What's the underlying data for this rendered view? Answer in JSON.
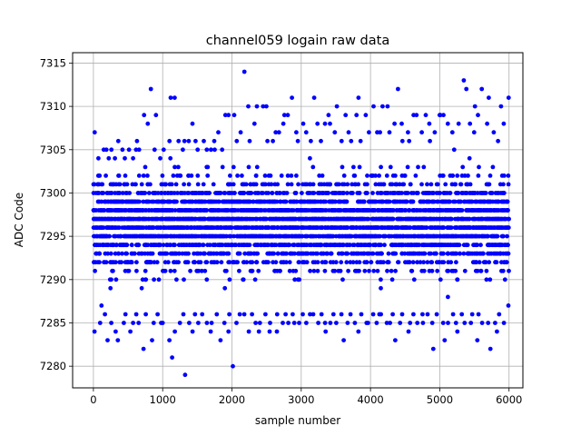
{
  "chart_data": {
    "type": "scatter",
    "title": "channel059 logain raw data",
    "xlabel": "sample number",
    "ylabel": "ADC Code",
    "xlim": [
      -300,
      6200
    ],
    "ylim": [
      7277.5,
      7316.2
    ],
    "grid": true,
    "legend": "none",
    "marker_color": "#0000ff",
    "x_ticks": [
      {
        "value": 0,
        "label": "0"
      },
      {
        "value": 1000,
        "label": "1000"
      },
      {
        "value": 2000,
        "label": "2000"
      },
      {
        "value": 3000,
        "label": "3000"
      },
      {
        "value": 4000,
        "label": "4000"
      },
      {
        "value": 5000,
        "label": "5000"
      },
      {
        "value": 6000,
        "label": "6000"
      }
    ],
    "y_ticks": [
      {
        "value": 7280,
        "label": "7280"
      },
      {
        "value": 7285,
        "label": "7285"
      },
      {
        "value": 7290,
        "label": "7290"
      },
      {
        "value": 7295,
        "label": "7295"
      },
      {
        "value": 7300,
        "label": "7300"
      },
      {
        "value": 7305,
        "label": "7305"
      },
      {
        "value": 7310,
        "label": "7310"
      },
      {
        "value": 7315,
        "label": "7315"
      }
    ],
    "series": [
      {
        "x_start": 0,
        "x_end": 5950,
        "x_step": 50,
        "y_min_per_bin": [
          7284,
          7285,
          7287,
          7286,
          7283,
          7285,
          7284,
          7283,
          7285,
          7286,
          7284,
          7285,
          7286,
          7285,
          7282,
          7286,
          7283,
          7285,
          7286,
          7285,
          7285,
          7283,
          7281,
          7284,
          7285,
          7286,
          7279,
          7285,
          7284,
          7286,
          7285,
          7286,
          7285,
          7284,
          7285,
          7286,
          7283,
          7285,
          7284,
          7286,
          7280,
          7285,
          7286,
          7286,
          7284,
          7286,
          7285,
          7284,
          7285,
          7286,
          7284,
          7285,
          7284,
          7286,
          7285,
          7286,
          7285,
          7286,
          7285,
          7285,
          7286,
          7285,
          7286,
          7286,
          7285,
          7286,
          7285,
          7284,
          7285,
          7286,
          7285,
          7286,
          7283,
          7285,
          7286,
          7285,
          7284,
          7286,
          7285,
          7285,
          7286,
          7285,
          7286,
          7286,
          7285,
          7285,
          7286,
          7283,
          7285,
          7286,
          7284,
          7285,
          7286,
          7285,
          7286,
          7285,
          7286,
          7285,
          7282,
          7286,
          7285,
          7283,
          7285,
          7286,
          7285,
          7284,
          7286,
          7285,
          7285,
          7286,
          7283,
          7286,
          7285,
          7285,
          7282,
          7285,
          7284,
          7286,
          7285,
          7287
        ],
        "y_max_per_bin": [
          7307,
          7304,
          7305,
          7305,
          7304,
          7305,
          7304,
          7306,
          7305,
          7304,
          7305,
          7304,
          7306,
          7305,
          7309,
          7308,
          7312,
          7305,
          7309,
          7304,
          7305,
          7306,
          7311,
          7311,
          7306,
          7305,
          7306,
          7306,
          7308,
          7306,
          7305,
          7306,
          7305,
          7305,
          7306,
          7305,
          7307,
          7305,
          7309,
          7309,
          7309,
          7306,
          7307,
          7314,
          7310,
          7306,
          7308,
          7310,
          7310,
          7310,
          7306,
          7306,
          7307,
          7307,
          7308,
          7309,
          7309,
          7311,
          7307,
          7306,
          7308,
          7307,
          7306,
          7311,
          7308,
          7306,
          7308,
          7309,
          7308,
          7307,
          7310,
          7306,
          7309,
          7307,
          7306,
          7309,
          7311,
          7306,
          7309,
          7307,
          7310,
          7307,
          7307,
          7310,
          7310,
          7307,
          7308,
          7312,
          7308,
          7306,
          7307,
          7306,
          7309,
          7309,
          7307,
          7309,
          7308,
          7306,
          7307,
          7309,
          7309,
          7309,
          7308,
          7307,
          7305,
          7308,
          7313,
          7312,
          7308,
          7307,
          7310,
          7309,
          7312,
          7308,
          7311,
          7307,
          7306,
          7310,
          7308,
          7311
        ],
        "y_values_note_free": true
      }
    ]
  }
}
